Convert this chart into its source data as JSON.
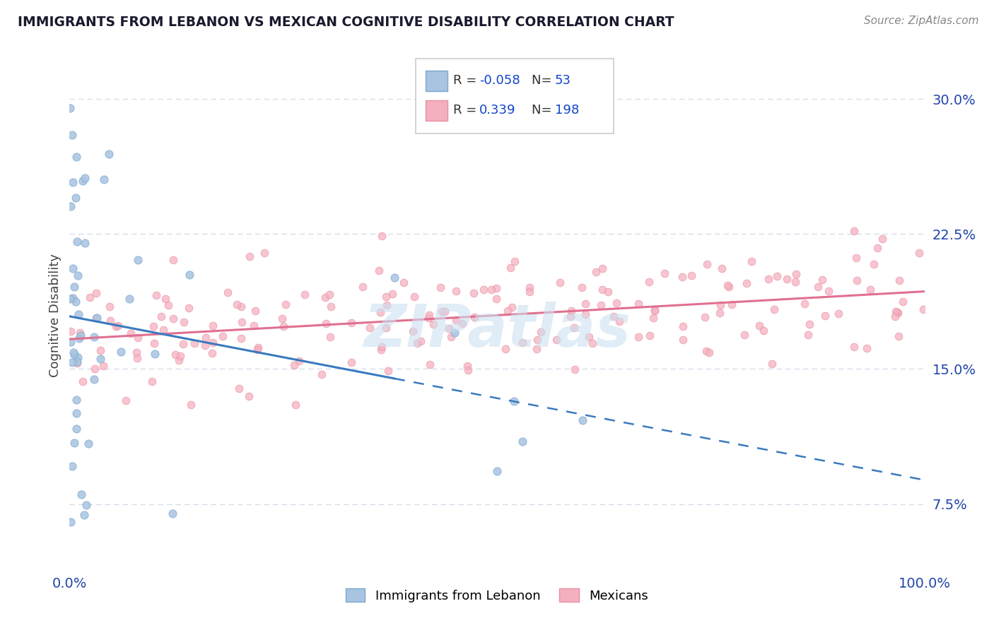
{
  "title": "IMMIGRANTS FROM LEBANON VS MEXICAN COGNITIVE DISABILITY CORRELATION CHART",
  "source": "Source: ZipAtlas.com",
  "ylabel": "Cognitive Disability",
  "xlim": [
    0.0,
    1.0
  ],
  "ylim": [
    0.04,
    0.32
  ],
  "yticks": [
    0.075,
    0.15,
    0.225,
    0.3
  ],
  "ytick_labels": [
    "7.5%",
    "15.0%",
    "22.5%",
    "30.0%"
  ],
  "xtick_labels": [
    "0.0%",
    "100.0%"
  ],
  "blue_scatter_color": "#a8c4e0",
  "blue_edge_color": "#7aa8d0",
  "pink_scatter_color": "#f5b0c0",
  "pink_edge_color": "#e890a0",
  "blue_line_color": "#3a7abf",
  "pink_line_color": "#e07090",
  "watermark_color": "#cce0f0",
  "grid_color": "#d0dce8",
  "title_color": "#1a1a2e",
  "source_color": "#888888",
  "ylabel_color": "#444444",
  "tick_color": "#2244aa",
  "legend_box_color": "#cccccc",
  "legend_text_color": "#1144cc"
}
